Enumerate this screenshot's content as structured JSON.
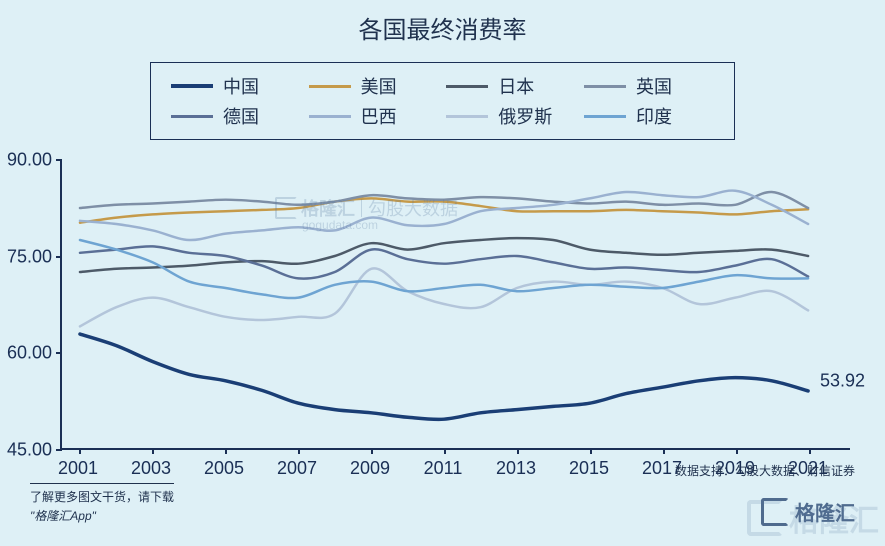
{
  "title": "各国最终消费率",
  "legend": {
    "rows": [
      [
        {
          "label": "中国",
          "color": "#1a3e75",
          "width": 4
        },
        {
          "label": "美国",
          "color": "#c59a4a",
          "width": 3
        },
        {
          "label": "日本",
          "color": "#4d5a68",
          "width": 3
        },
        {
          "label": "英国",
          "color": "#7e8fa6",
          "width": 3
        }
      ],
      [
        {
          "label": "德国",
          "color": "#5a6f96",
          "width": 3
        },
        {
          "label": "巴西",
          "color": "#9ab1d0",
          "width": 3
        },
        {
          "label": "俄罗斯",
          "color": "#b3c5da",
          "width": 3
        },
        {
          "label": "印度",
          "color": "#6ea4d2",
          "width": 3
        }
      ]
    ]
  },
  "chart": {
    "type": "line",
    "background_color": "#def0f6",
    "axis_color": "#1a2f55",
    "axis_width": 2,
    "ylim": [
      45,
      90
    ],
    "yticks": [
      45.0,
      60.0,
      75.0,
      90.0
    ],
    "ytick_labels": [
      "45.00",
      "60.00",
      "75.00",
      "90.00"
    ],
    "x_values": [
      2001,
      2002,
      2003,
      2004,
      2005,
      2006,
      2007,
      2008,
      2009,
      2010,
      2011,
      2012,
      2013,
      2014,
      2015,
      2016,
      2017,
      2018,
      2019,
      2020,
      2021
    ],
    "xtick_values": [
      2001,
      2003,
      2005,
      2007,
      2009,
      2011,
      2013,
      2015,
      2017,
      2019,
      2021
    ],
    "xtick_labels": [
      "2001",
      "2003",
      "2005",
      "2007",
      "2009",
      "2011",
      "2013",
      "2015",
      "2017",
      "2019",
      "2021"
    ],
    "label_fontsize": 18,
    "label_color": "#1a2f55",
    "series": [
      {
        "name": "中国",
        "color": "#1a3e75",
        "width": 3.5,
        "y": [
          62.8,
          61.0,
          58.5,
          56.5,
          55.5,
          54.0,
          52.0,
          51.0,
          50.5,
          49.8,
          49.5,
          50.5,
          51.0,
          51.5,
          52.0,
          53.5,
          54.5,
          55.5,
          56.0,
          55.5,
          53.92
        ]
      },
      {
        "name": "美国",
        "color": "#c59a4a",
        "width": 2.5,
        "y": [
          80.2,
          81.0,
          81.5,
          81.8,
          82.0,
          82.2,
          82.5,
          83.5,
          84.0,
          83.5,
          83.5,
          82.8,
          82.0,
          82.0,
          82.0,
          82.2,
          82.0,
          81.8,
          81.5,
          82.0,
          82.3
        ]
      },
      {
        "name": "日本",
        "color": "#4d5a68",
        "width": 2.5,
        "y": [
          72.5,
          73.0,
          73.2,
          73.5,
          74.0,
          74.2,
          73.8,
          75.0,
          77.0,
          76.0,
          77.0,
          77.5,
          77.8,
          77.5,
          76.0,
          75.5,
          75.2,
          75.5,
          75.8,
          76.0,
          75.0
        ]
      },
      {
        "name": "英国",
        "color": "#7e8fa6",
        "width": 2.5,
        "y": [
          82.5,
          83.0,
          83.2,
          83.5,
          83.8,
          83.5,
          83.0,
          83.5,
          84.5,
          84.0,
          83.8,
          84.2,
          84.0,
          83.5,
          83.2,
          83.5,
          83.0,
          83.2,
          83.0,
          85.0,
          82.5
        ]
      },
      {
        "name": "德国",
        "color": "#5a6f96",
        "width": 2.5,
        "y": [
          75.5,
          76.0,
          76.5,
          75.5,
          75.0,
          73.5,
          71.5,
          72.5,
          76.0,
          74.5,
          73.8,
          74.5,
          75.0,
          74.0,
          73.0,
          73.2,
          72.8,
          72.5,
          73.5,
          74.5,
          71.8
        ]
      },
      {
        "name": "巴西",
        "color": "#9ab1d0",
        "width": 2.5,
        "y": [
          80.5,
          80.0,
          79.0,
          77.5,
          78.5,
          79.0,
          79.5,
          79.0,
          81.0,
          79.8,
          80.0,
          82.0,
          82.5,
          83.0,
          84.0,
          85.0,
          84.5,
          84.2,
          85.2,
          83.0,
          80.0
        ]
      },
      {
        "name": "俄罗斯",
        "color": "#b3c5da",
        "width": 2.5,
        "y": [
          64.0,
          67.0,
          68.5,
          67.0,
          65.5,
          65.0,
          65.5,
          66.0,
          73.0,
          69.5,
          67.5,
          67.0,
          70.0,
          71.0,
          70.5,
          71.0,
          70.0,
          67.5,
          68.5,
          69.5,
          66.5
        ]
      },
      {
        "name": "印度",
        "color": "#6ea4d2",
        "width": 2.5,
        "y": [
          77.5,
          76.0,
          74.0,
          71.0,
          70.0,
          69.0,
          68.5,
          70.5,
          71.0,
          69.5,
          70.0,
          70.5,
          69.5,
          70.0,
          70.5,
          70.2,
          70.0,
          71.0,
          72.0,
          71.5,
          71.5
        ]
      }
    ],
    "end_label": {
      "text": "53.92",
      "series": "中国",
      "color": "#1a2f55",
      "fontsize": 18
    }
  },
  "footer": {
    "data_support": "数据支持：勾股大数据、财信证券",
    "left_line1": "了解更多图文干货，请下载",
    "left_line2": "\"格隆汇App\"",
    "right_logo_text": "格隆汇"
  },
  "watermarks": {
    "center1": "格隆汇",
    "center2": "勾股大数据",
    "domain": "gogudata.com",
    "corner": "格隆汇"
  }
}
